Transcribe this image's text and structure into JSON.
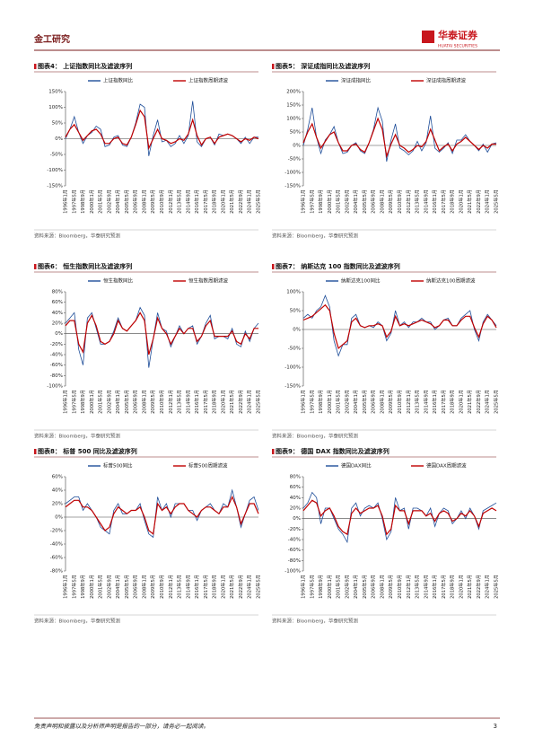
{
  "header": {
    "section": "金工研究",
    "logo": "华泰证券",
    "logo_en": "HUATAI SECURITIES"
  },
  "footer": {
    "disclaimer": "免责声明和披露以及分析师声明是报告的一部分，请务必一起阅读。",
    "page": "3"
  },
  "chart_data": [
    {
      "type": "line",
      "title": "图表4： 上证指数同比及滤波序列",
      "source": "资料来源：Bloomberg，华泰研究预测",
      "categories": [
        "1996年1月",
        null,
        "1997年5月",
        null,
        "1998年9月",
        null,
        "2000年1月",
        null,
        "2001年5月",
        null,
        "2002年9月",
        null,
        "2004年1月",
        null,
        "2005年5月",
        null,
        "2006年9月",
        null,
        "2008年1月",
        null,
        "2009年5月",
        null,
        "2010年9月",
        null,
        "2012年1月",
        null,
        "2013年5月",
        null,
        "2014年9月",
        null,
        "2016年1月",
        null,
        "2017年5月",
        null,
        "2018年9月",
        null,
        "2020年1月",
        null,
        "2021年5月",
        null,
        "2022年9月",
        null,
        "2024年1月",
        null,
        "2025年5月"
      ],
      "series": [
        {
          "name": "上证指数同比",
          "color": "#1f4e99",
          "values": [
            0,
            30,
            70,
            20,
            -15,
            10,
            20,
            40,
            30,
            -25,
            -20,
            5,
            10,
            -20,
            -25,
            5,
            50,
            110,
            100,
            -55,
            10,
            60,
            -10,
            -5,
            -25,
            -15,
            10,
            -15,
            10,
            120,
            -10,
            -25,
            0,
            5,
            -20,
            15,
            10,
            15,
            10,
            0,
            -15,
            5,
            -15,
            5,
            5
          ]
        },
        {
          "name": "上证指数周期滤波",
          "color": "#c00000",
          "values": [
            5,
            30,
            45,
            20,
            -5,
            10,
            25,
            30,
            15,
            -15,
            -15,
            0,
            5,
            -15,
            -20,
            5,
            45,
            90,
            70,
            -30,
            0,
            30,
            0,
            -5,
            -15,
            -10,
            0,
            -5,
            15,
            60,
            10,
            -20,
            0,
            5,
            -15,
            5,
            10,
            15,
            10,
            0,
            -10,
            0,
            -5,
            5,
            0
          ]
        }
      ],
      "ylim": [
        -150,
        150
      ],
      "yticks": [
        {
          "value": -150,
          "label": "-150%"
        },
        {
          "value": -100,
          "label": "-100%"
        },
        {
          "value": -50,
          "label": "-50%"
        },
        {
          "value": 0,
          "label": "0%"
        },
        {
          "value": 50,
          "label": "50%"
        },
        {
          "value": 100,
          "label": "100%"
        },
        {
          "value": 150,
          "label": "150%"
        }
      ]
    },
    {
      "type": "line",
      "title": "图表5： 深证成指同比及滤波序列",
      "source": "资料来源：Bloomberg，华泰研究预测",
      "categories": [
        "1996年1月",
        null,
        "1997年5月",
        null,
        "1998年9月",
        null,
        "2000年1月",
        null,
        "2001年5月",
        null,
        "2002年9月",
        null,
        "2004年1月",
        null,
        "2005年5月",
        null,
        "2006年9月",
        null,
        "2008年1月",
        null,
        "2009年5月",
        null,
        "2010年9月",
        null,
        "2012年1月",
        null,
        "2013年5月",
        null,
        "2014年9月",
        null,
        "2016年1月",
        null,
        "2017年5月",
        null,
        "2018年9月",
        null,
        "2020年1月",
        null,
        "2021年5月",
        null,
        "2022年9月",
        null,
        "2024年1月",
        null,
        "2025年5月"
      ],
      "series": [
        {
          "name": "深证成指同比",
          "color": "#1f4e99",
          "values": [
            0,
            60,
            140,
            30,
            -30,
            20,
            40,
            70,
            10,
            -30,
            -25,
            0,
            10,
            -20,
            -30,
            10,
            60,
            140,
            90,
            -60,
            20,
            80,
            -10,
            -20,
            -35,
            -20,
            15,
            -20,
            10,
            110,
            -10,
            -25,
            -10,
            10,
            -30,
            20,
            20,
            40,
            15,
            0,
            -20,
            5,
            -25,
            5,
            10
          ]
        },
        {
          "name": "深证成指周期滤波",
          "color": "#c00000",
          "values": [
            10,
            50,
            80,
            30,
            -10,
            15,
            40,
            50,
            10,
            -20,
            -20,
            0,
            5,
            -15,
            -25,
            10,
            55,
            100,
            60,
            -40,
            5,
            40,
            0,
            -10,
            -25,
            -15,
            0,
            -5,
            15,
            60,
            20,
            -20,
            -5,
            5,
            -20,
            5,
            15,
            30,
            15,
            0,
            -15,
            0,
            -10,
            5,
            5
          ]
        }
      ],
      "ylim": [
        -150,
        200
      ],
      "yticks": [
        {
          "value": -150,
          "label": "-150%"
        },
        {
          "value": -100,
          "label": "-100%"
        },
        {
          "value": -50,
          "label": "-50%"
        },
        {
          "value": 0,
          "label": "0%"
        },
        {
          "value": 50,
          "label": "50%"
        },
        {
          "value": 100,
          "label": "100%"
        },
        {
          "value": 150,
          "label": "150%"
        },
        {
          "value": 200,
          "label": "200%"
        }
      ]
    },
    {
      "type": "line",
      "title": "图表6： 恒生指数同比及滤波序列",
      "source": "资料来源：Bloomberg，华泰研究预测",
      "categories": [
        "1996年1月",
        null,
        "1997年5月",
        null,
        "1998年9月",
        null,
        "2000年1月",
        null,
        "2001年5月",
        null,
        "2002年9月",
        null,
        "2004年1月",
        null,
        "2005年5月",
        null,
        "2006年9月",
        null,
        "2008年1月",
        null,
        "2009年5月",
        null,
        "2010年9月",
        null,
        "2012年1月",
        null,
        "2013年5月",
        null,
        "2014年9月",
        null,
        "2016年1月",
        null,
        "2017年5月",
        null,
        "2018年9月",
        null,
        "2020年1月",
        null,
        "2021年5月",
        null,
        "2022年9月",
        null,
        "2024年1月",
        null,
        "2025年5月"
      ],
      "series": [
        {
          "name": "恒生指数同比",
          "color": "#1f4e99",
          "values": [
            20,
            30,
            40,
            -30,
            -60,
            30,
            40,
            10,
            -20,
            -20,
            -15,
            5,
            30,
            10,
            5,
            15,
            25,
            50,
            35,
            -65,
            -10,
            40,
            10,
            5,
            -25,
            -5,
            15,
            0,
            10,
            15,
            -20,
            -5,
            20,
            35,
            -10,
            -5,
            -5,
            -10,
            10,
            -20,
            -25,
            5,
            -15,
            10,
            20
          ]
        },
        {
          "name": "恒生指数周期滤波",
          "color": "#c00000",
          "values": [
            15,
            25,
            25,
            -20,
            -35,
            20,
            35,
            15,
            -15,
            -20,
            -15,
            0,
            25,
            10,
            5,
            15,
            25,
            40,
            25,
            -40,
            -10,
            30,
            10,
            0,
            -20,
            -5,
            10,
            0,
            10,
            10,
            -15,
            -5,
            15,
            25,
            -5,
            -5,
            -5,
            -5,
            5,
            -15,
            -20,
            0,
            -10,
            10,
            10
          ]
        }
      ],
      "ylim": [
        -100,
        80
      ],
      "yticks": [
        {
          "value": -100,
          "label": "-100%"
        },
        {
          "value": -80,
          "label": "-80%"
        },
        {
          "value": -60,
          "label": "-60%"
        },
        {
          "value": -40,
          "label": "-40%"
        },
        {
          "value": -20,
          "label": "-20%"
        },
        {
          "value": 0,
          "label": "0%"
        },
        {
          "value": 20,
          "label": "20%"
        },
        {
          "value": 40,
          "label": "40%"
        },
        {
          "value": 60,
          "label": "60%"
        },
        {
          "value": 80,
          "label": "80%"
        }
      ]
    },
    {
      "type": "line",
      "title": "图表7： 纳斯达克 100 指数同比及滤波序列",
      "source": "资料来源：Bloomberg，华泰研究预测",
      "categories": [
        "1996年1月",
        null,
        "1997年5月",
        null,
        "1998年9月",
        null,
        "2000年1月",
        null,
        "2001年5月",
        null,
        "2002年9月",
        null,
        "2004年1月",
        null,
        "2005年5月",
        null,
        "2006年9月",
        null,
        "2008年1月",
        null,
        "2009年5月",
        null,
        "2010年9月",
        null,
        "2012年1月",
        null,
        "2013年5月",
        null,
        "2014年9月",
        null,
        "2016年1月",
        null,
        "2017年5月",
        null,
        "2018年9月",
        null,
        "2020年1月",
        null,
        "2021年5月",
        null,
        "2022年9月",
        null,
        "2024年1月",
        null,
        "2025年5月"
      ],
      "series": [
        {
          "name": "纳斯达克100同比",
          "color": "#1f4e99",
          "values": [
            30,
            40,
            30,
            50,
            60,
            90,
            60,
            -30,
            -70,
            -40,
            -40,
            30,
            40,
            10,
            5,
            10,
            5,
            20,
            10,
            -30,
            -10,
            50,
            10,
            20,
            5,
            20,
            20,
            30,
            20,
            20,
            0,
            10,
            25,
            30,
            10,
            10,
            30,
            40,
            50,
            0,
            -30,
            20,
            40,
            25,
            10
          ]
        },
        {
          "name": "纳斯达克100周期滤波",
          "color": "#c00000",
          "values": [
            25,
            30,
            35,
            45,
            55,
            65,
            50,
            -10,
            -50,
            -40,
            -30,
            20,
            30,
            10,
            5,
            10,
            10,
            15,
            10,
            -20,
            -5,
            35,
            10,
            15,
            10,
            15,
            20,
            25,
            20,
            15,
            5,
            10,
            25,
            25,
            10,
            10,
            25,
            35,
            35,
            5,
            -20,
            15,
            35,
            25,
            5
          ]
        }
      ],
      "ylim": [
        -150,
        100
      ],
      "yticks": [
        {
          "value": -150,
          "label": "-150%"
        },
        {
          "value": -100,
          "label": "-100%"
        },
        {
          "value": -50,
          "label": "-50%"
        },
        {
          "value": 0,
          "label": "0%"
        },
        {
          "value": 50,
          "label": "50%"
        },
        {
          "value": 100,
          "label": "100%"
        }
      ]
    },
    {
      "type": "line",
      "title": "图表8： 标普 500 同比及滤波序列",
      "source": "资料来源：Bloomberg，华泰研究预测",
      "categories": [
        "1996年1月",
        null,
        "1997年5月",
        null,
        "1998年9月",
        null,
        "2000年1月",
        null,
        "2001年5月",
        null,
        "2002年9月",
        null,
        "2004年1月",
        null,
        "2005年5月",
        null,
        "2006年9月",
        null,
        "2008年1月",
        null,
        "2009年5月",
        null,
        "2010年9月",
        null,
        "2012年1月",
        null,
        "2013年5月",
        null,
        "2014年9月",
        null,
        "2016年1月",
        null,
        "2017年5月",
        null,
        "2018年9月",
        null,
        "2020年1月",
        null,
        "2021年5月",
        null,
        "2022年9月",
        null,
        "2024年1月",
        null,
        "2025年5月"
      ],
      "series": [
        {
          "name": "标普500同比",
          "color": "#1f4e99",
          "values": [
            20,
            25,
            30,
            30,
            10,
            20,
            10,
            0,
            -15,
            -20,
            -25,
            10,
            20,
            5,
            5,
            10,
            10,
            20,
            -5,
            -25,
            -30,
            30,
            10,
            20,
            0,
            20,
            20,
            20,
            10,
            10,
            -5,
            10,
            15,
            20,
            10,
            5,
            20,
            15,
            40,
            15,
            -15,
            5,
            25,
            30,
            10
          ]
        },
        {
          "name": "标普500周期滤波",
          "color": "#c00000",
          "values": [
            15,
            20,
            25,
            25,
            15,
            15,
            10,
            0,
            -10,
            -20,
            -15,
            5,
            15,
            10,
            5,
            10,
            10,
            15,
            0,
            -20,
            -25,
            20,
            10,
            15,
            5,
            15,
            20,
            20,
            10,
            5,
            0,
            10,
            15,
            15,
            10,
            5,
            15,
            15,
            30,
            15,
            -10,
            5,
            20,
            20,
            5
          ]
        }
      ],
      "ylim": [
        -80,
        60
      ],
      "yticks": [
        {
          "value": -80,
          "label": "-80%"
        },
        {
          "value": -60,
          "label": "-60%"
        },
        {
          "value": -40,
          "label": "-40%"
        },
        {
          "value": -20,
          "label": "-20%"
        },
        {
          "value": 0,
          "label": "0%"
        },
        {
          "value": 20,
          "label": "20%"
        },
        {
          "value": 40,
          "label": "40%"
        },
        {
          "value": 60,
          "label": "60%"
        }
      ]
    },
    {
      "type": "line",
      "title": "图表9： 德国 DAX 指数同比及滤波序列",
      "source": "资料来源：Bloomberg，华泰研究预测",
      "categories": [
        "1996年1月",
        null,
        "1997年5月",
        null,
        "1998年9月",
        null,
        "2000年1月",
        null,
        "2001年5月",
        null,
        "2002年9月",
        null,
        "2004年1月",
        null,
        "2005年5月",
        null,
        "2006年9月",
        null,
        "2008年1月",
        null,
        "2009年5月",
        null,
        "2010年9月",
        null,
        "2012年1月",
        null,
        "2013年5月",
        null,
        "2014年9月",
        null,
        "2016年1月",
        null,
        "2017年5月",
        null,
        "2018年9月",
        null,
        "2020年1月",
        null,
        "2021年5月",
        null,
        "2022年9月",
        null,
        "2024年1月",
        null,
        "2025年5月"
      ],
      "series": [
        {
          "name": "德国DAX同比",
          "color": "#1f4e99",
          "values": [
            20,
            30,
            50,
            40,
            -10,
            20,
            20,
            0,
            -20,
            -30,
            -45,
            20,
            30,
            5,
            20,
            25,
            20,
            30,
            0,
            -40,
            -25,
            40,
            15,
            20,
            -20,
            20,
            20,
            15,
            5,
            20,
            -15,
            10,
            20,
            15,
            -10,
            0,
            15,
            0,
            20,
            5,
            -20,
            15,
            20,
            25,
            30
          ]
        },
        {
          "name": "德国DAX周期滤波",
          "color": "#c00000",
          "values": [
            15,
            25,
            35,
            30,
            5,
            15,
            20,
            5,
            -15,
            -25,
            -30,
            10,
            20,
            10,
            15,
            20,
            20,
            25,
            5,
            -30,
            -20,
            25,
            15,
            15,
            -10,
            15,
            15,
            15,
            5,
            10,
            -5,
            10,
            15,
            10,
            -5,
            0,
            10,
            5,
            15,
            5,
            -15,
            10,
            15,
            20,
            15
          ]
        }
      ],
      "ylim": [
        -100,
        80
      ],
      "yticks": [
        {
          "value": -100,
          "label": "-100%"
        },
        {
          "value": -80,
          "label": "-80%"
        },
        {
          "value": -60,
          "label": "-60%"
        },
        {
          "value": -40,
          "label": "-40%"
        },
        {
          "value": -20,
          "label": "-20%"
        },
        {
          "value": 0,
          "label": "0%"
        },
        {
          "value": 20,
          "label": "20%"
        },
        {
          "value": 40,
          "label": "40%"
        },
        {
          "value": 60,
          "label": "60%"
        },
        {
          "value": 80,
          "label": "80%"
        }
      ]
    }
  ]
}
